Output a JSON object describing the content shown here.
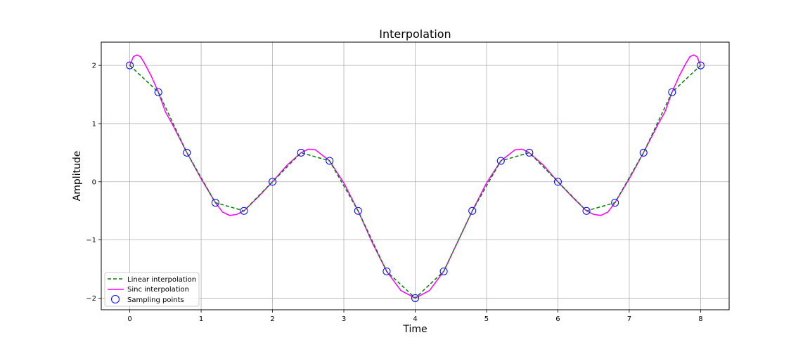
{
  "chart_data": {
    "type": "line",
    "title": "Interpolation",
    "xlabel": "Time",
    "ylabel": "Amplitude",
    "xlim": [
      -0.4,
      8.4
    ],
    "ylim": [
      -2.2,
      2.4
    ],
    "xticks": [
      0,
      1,
      2,
      3,
      4,
      5,
      6,
      7,
      8
    ],
    "xtick_labels": [
      "0",
      "1",
      "2",
      "3",
      "4",
      "5",
      "6",
      "7",
      "8"
    ],
    "yticks": [
      -2,
      -1,
      0,
      1,
      2
    ],
    "ytick_labels": [
      "−2",
      "−1",
      "0",
      "1",
      "2"
    ],
    "grid": true,
    "legend_position": "lower-left",
    "series": [
      {
        "name": "Linear interpolation",
        "style": "dashed",
        "color": "#008000",
        "x": [
          0,
          0.4,
          0.8,
          1.2,
          1.6,
          2.0,
          2.4,
          2.8,
          3.2,
          3.6,
          4.0,
          4.4,
          4.8,
          5.2,
          5.6,
          6.0,
          6.4,
          6.8,
          7.2,
          7.6,
          8.0
        ],
        "y": [
          2.0,
          1.54,
          0.5,
          -0.36,
          -0.5,
          0.0,
          0.5,
          0.36,
          -0.5,
          -1.54,
          -2.0,
          -1.54,
          -0.5,
          0.36,
          0.5,
          0.0,
          -0.5,
          -0.36,
          0.5,
          1.54,
          2.0
        ]
      },
      {
        "name": "Sinc interpolation",
        "style": "solid",
        "color": "#ff00ff",
        "x": [
          0,
          0.05,
          0.1,
          0.15,
          0.2,
          0.3,
          0.4,
          0.5,
          0.6,
          0.8,
          1.0,
          1.2,
          1.3,
          1.4,
          1.5,
          1.6,
          1.8,
          2.0,
          2.2,
          2.4,
          2.5,
          2.6,
          2.8,
          3.0,
          3.2,
          3.4,
          3.6,
          3.8,
          4.0,
          4.2,
          4.4,
          4.6,
          4.8,
          5.0,
          5.2,
          5.4,
          5.5,
          5.6,
          5.8,
          6.0,
          6.2,
          6.4,
          6.5,
          6.6,
          6.7,
          6.8,
          7.0,
          7.2,
          7.4,
          7.5,
          7.6,
          7.7,
          7.8,
          7.85,
          7.9,
          7.95,
          8.0
        ],
        "y": [
          2.0,
          2.15,
          2.18,
          2.15,
          2.05,
          1.82,
          1.54,
          1.2,
          0.98,
          0.5,
          0.05,
          -0.36,
          -0.52,
          -0.58,
          -0.56,
          -0.5,
          -0.26,
          0.0,
          0.28,
          0.5,
          0.56,
          0.55,
          0.36,
          -0.02,
          -0.5,
          -1.05,
          -1.54,
          -1.87,
          -2.0,
          -1.87,
          -1.54,
          -1.02,
          -0.5,
          -0.02,
          0.36,
          0.55,
          0.56,
          0.5,
          0.28,
          0.0,
          -0.26,
          -0.5,
          -0.56,
          -0.58,
          -0.52,
          -0.36,
          0.05,
          0.5,
          0.98,
          1.2,
          1.54,
          1.82,
          2.05,
          2.15,
          2.18,
          2.15,
          2.0
        ]
      },
      {
        "name": "Sampling points",
        "style": "markers",
        "color": "#0000ff",
        "x": [
          0,
          0.4,
          0.8,
          1.2,
          1.6,
          2.0,
          2.4,
          2.8,
          3.2,
          3.6,
          4.0,
          4.4,
          4.8,
          5.2,
          5.6,
          6.0,
          6.4,
          6.8,
          7.2,
          7.6,
          8.0
        ],
        "y": [
          2.0,
          1.54,
          0.5,
          -0.36,
          -0.5,
          0.0,
          0.5,
          0.36,
          -0.5,
          -1.54,
          -2.0,
          -1.54,
          -0.5,
          0.36,
          0.5,
          0.0,
          -0.5,
          -0.36,
          0.5,
          1.54,
          2.0
        ]
      }
    ]
  }
}
